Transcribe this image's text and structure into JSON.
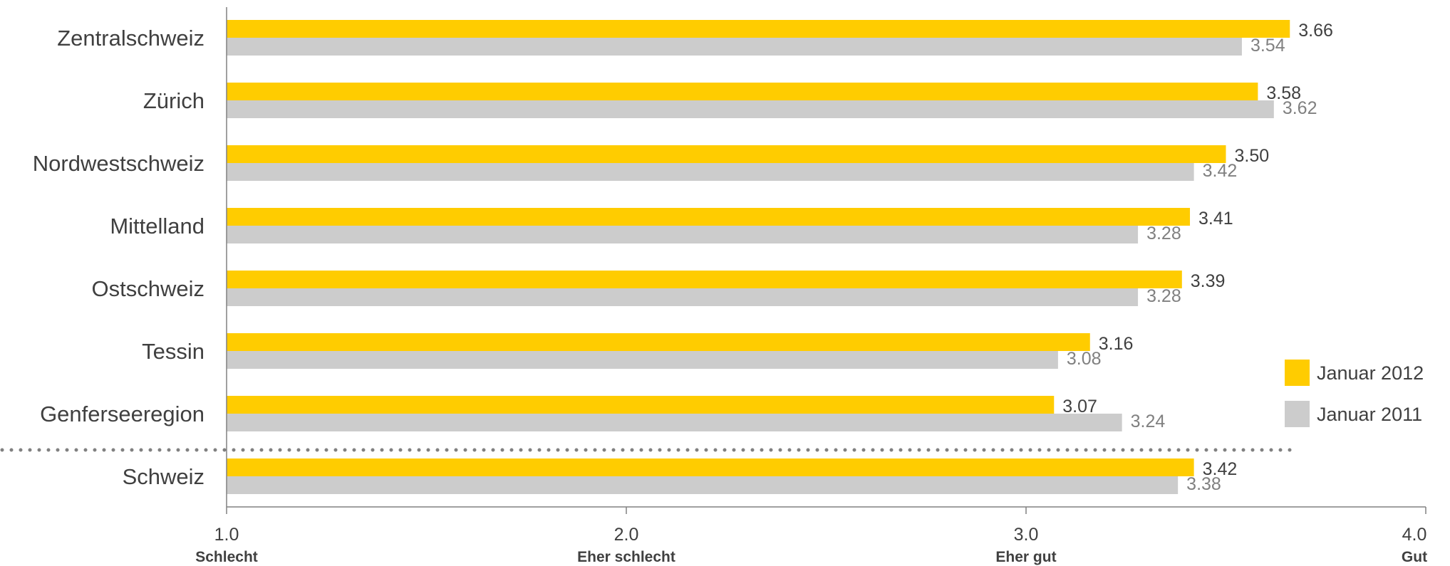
{
  "chart_data": {
    "type": "bar",
    "orientation": "horizontal",
    "categories": [
      "Zentralschweiz",
      "Zürich",
      "Nordwestschweiz",
      "Mittelland",
      "Ostschweiz",
      "Tessin",
      "Genferseeregion",
      "Schweiz"
    ],
    "series": [
      {
        "name": "Januar 2012",
        "color": "#FFCC00",
        "label_color": "#404040",
        "values": [
          3.66,
          3.58,
          3.5,
          3.41,
          3.39,
          3.16,
          3.07,
          3.42
        ],
        "labels": [
          "3.66",
          "3.58",
          "3.50",
          "3.41",
          "3.39",
          "3.16",
          "3.07",
          "3.42"
        ]
      },
      {
        "name": "Januar 2011",
        "color": "#CCCCCC",
        "label_color": "#808080",
        "values": [
          3.54,
          3.62,
          3.42,
          3.28,
          3.28,
          3.08,
          3.24,
          3.38
        ],
        "labels": [
          "3.54",
          "3.62",
          "3.42",
          "3.28",
          "3.28",
          "3.08",
          "3.24",
          "3.38"
        ]
      }
    ],
    "xlim": [
      1.0,
      4.0
    ],
    "ticks": [
      {
        "value": 1.0,
        "label": "1.0",
        "desc": "Schlecht"
      },
      {
        "value": 2.0,
        "label": "2.0",
        "desc": "Eher schlecht"
      },
      {
        "value": 3.0,
        "label": "3.0",
        "desc": "Eher gut"
      },
      {
        "value": 4.0,
        "label": "4.0",
        "desc": "Gut"
      }
    ],
    "separator_before": "Schweiz",
    "grid": false,
    "legend_position": "right"
  }
}
